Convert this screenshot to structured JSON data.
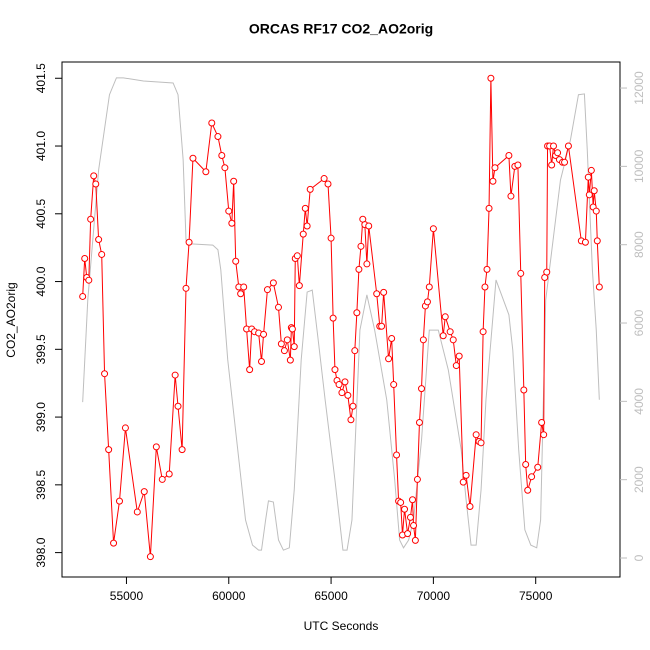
{
  "chart_data": {
    "type": "line",
    "title": "ORCAS RF17 CO2_AO2orig",
    "xlabel": "UTC Seconds",
    "ylabel": "CO2_AO2orig",
    "xlim": [
      51850,
      79120
    ],
    "xticks": [
      55000,
      60000,
      65000,
      70000,
      75000
    ],
    "ylim": [
      397.82,
      401.62
    ],
    "yticks": [
      {
        "value": 398.0,
        "label": "398.0"
      },
      398.5,
      {
        "value": 399.0,
        "label": "399.0"
      },
      399.5,
      {
        "value": 400.0,
        "label": "400.0"
      },
      400.5,
      {
        "value": 401.0,
        "label": "401.0"
      },
      401.5
    ],
    "y2lim": [
      -485,
      12665
    ],
    "y2ticks": [
      0,
      2000,
      4000,
      6000,
      8000,
      10000,
      12000
    ],
    "y2color": "#bebebe",
    "series": [
      {
        "color": "#bebebe",
        "axis": "y2",
        "markers": false,
        "x": [
          52860,
          53110,
          53640,
          54170,
          54510,
          54850,
          55830,
          57280,
          57520,
          57770,
          57910,
          58160,
          59220,
          59470,
          59610,
          59950,
          60440,
          60820,
          61160,
          61460,
          61600,
          61800,
          61940,
          62180,
          62430,
          62670,
          62960,
          63200,
          63540,
          63830,
          64080,
          64370,
          64710,
          65190,
          65580,
          65780,
          66020,
          66410,
          66750,
          67130,
          67720,
          68110,
          68350,
          68540,
          68790,
          69030,
          69420,
          69800,
          70240,
          70730,
          71360,
          71600,
          71840,
          72090,
          72330,
          72570,
          73060,
          73690,
          73880,
          74170,
          74470,
          74760,
          75050,
          75240,
          75490,
          76210,
          76700,
          77090,
          77380,
          77520,
          77770,
          77960,
          78110
        ],
        "values": [
          3980,
          6590,
          9910,
          11830,
          12260,
          12260,
          12180,
          12130,
          11830,
          10170,
          8120,
          8020,
          7990,
          7870,
          7360,
          5060,
          2760,
          970,
          330,
          200,
          200,
          970,
          1460,
          1430,
          460,
          200,
          260,
          1740,
          5060,
          6790,
          6840,
          5570,
          4040,
          1990,
          200,
          200,
          970,
          5820,
          6720,
          5820,
          4040,
          1990,
          460,
          260,
          460,
          970,
          3010,
          5820,
          5820,
          4800,
          2760,
          1480,
          330,
          330,
          1740,
          4040,
          7100,
          6210,
          5310,
          2760,
          720,
          330,
          260,
          970,
          6590,
          9650,
          10680,
          11830,
          11850,
          10420,
          7360,
          5820,
          4040
        ]
      },
      {
        "color": "#ff0000",
        "markers": true,
        "x": [
          52860,
          52960,
          53060,
          53160,
          53250,
          53400,
          53500,
          53640,
          53790,
          53930,
          54130,
          54370,
          54660,
          54950,
          55530,
          55870,
          56170,
          56460,
          56750,
          57090,
          57380,
          57520,
          57720,
          57910,
          58060,
          58250,
          58880,
          59170,
          59470,
          59660,
          59810,
          60000,
          60150,
          60240,
          60340,
          60490,
          60580,
          60730,
          60870,
          61020,
          61120,
          61260,
          61460,
          61600,
          61700,
          61890,
          62180,
          62430,
          62570,
          62720,
          62860,
          63010,
          63060,
          63110,
          63200,
          63250,
          63350,
          63450,
          63640,
          63740,
          63830,
          63980,
          64660,
          64850,
          65000,
          65100,
          65190,
          65290,
          65390,
          65530,
          65680,
          65820,
          65970,
          66070,
          66160,
          66260,
          66360,
          66460,
          66550,
          66650,
          66750,
          66840,
          67230,
          67380,
          67470,
          67570,
          67810,
          67960,
          68060,
          68200,
          68300,
          68400,
          68490,
          68590,
          68740,
          68880,
          68980,
          69030,
          69120,
          69220,
          69320,
          69420,
          69510,
          69610,
          69710,
          69800,
          70000,
          70480,
          70580,
          70820,
          70970,
          71120,
          71260,
          71460,
          71600,
          71790,
          72090,
          72230,
          72330,
          72430,
          72520,
          72620,
          72720,
          72810,
          72910,
          73010,
          73690,
          73790,
          73980,
          74130,
          74270,
          74420,
          74510,
          74610,
          74800,
          75100,
          75290,
          75390,
          75440,
          75540,
          75580,
          75680,
          75780,
          75870,
          75970,
          76070,
          76160,
          76310,
          76410,
          76600,
          77230,
          77430,
          77570,
          77620,
          77720,
          77810,
          77860,
          77960,
          78010,
          78110
        ],
        "values": [
          399.89,
          400.17,
          400.03,
          400.01,
          400.46,
          400.78,
          400.72,
          400.31,
          400.2,
          399.32,
          398.76,
          398.07,
          398.38,
          398.92,
          398.3,
          398.45,
          397.97,
          398.78,
          398.54,
          398.58,
          399.31,
          399.08,
          398.76,
          399.95,
          400.29,
          400.91,
          400.81,
          401.17,
          401.07,
          400.93,
          400.84,
          400.52,
          400.43,
          400.74,
          400.15,
          399.96,
          399.91,
          399.96,
          399.65,
          399.35,
          399.65,
          399.63,
          399.62,
          399.41,
          399.61,
          399.94,
          399.99,
          399.81,
          399.54,
          399.49,
          399.57,
          399.42,
          399.66,
          399.65,
          399.52,
          400.17,
          400.19,
          399.97,
          400.35,
          400.54,
          400.41,
          400.68,
          400.76,
          400.72,
          400.32,
          399.73,
          399.35,
          399.27,
          399.24,
          399.18,
          399.26,
          399.16,
          398.98,
          399.08,
          399.49,
          399.77,
          400.09,
          400.26,
          400.46,
          400.42,
          400.13,
          400.41,
          399.91,
          399.67,
          399.67,
          399.92,
          399.43,
          399.58,
          399.24,
          398.72,
          398.38,
          398.37,
          398.13,
          398.32,
          398.14,
          398.26,
          398.39,
          398.2,
          398.09,
          398.54,
          398.96,
          399.21,
          399.57,
          399.82,
          399.85,
          399.96,
          400.39,
          399.6,
          399.74,
          399.63,
          399.57,
          399.38,
          399.45,
          398.52,
          398.57,
          398.34,
          398.87,
          398.82,
          398.81,
          399.63,
          399.96,
          400.09,
          400.54,
          401.5,
          400.74,
          400.84,
          400.93,
          400.63,
          400.85,
          400.86,
          400.06,
          399.2,
          398.65,
          398.46,
          398.56,
          398.63,
          398.96,
          398.87,
          400.03,
          400.07,
          401.0,
          401.0,
          400.86,
          401.0,
          400.93,
          400.95,
          400.9,
          400.88,
          400.88,
          401.0,
          400.3,
          400.29,
          400.77,
          400.64,
          400.82,
          400.55,
          400.67,
          400.52,
          400.3,
          399.96
        ]
      }
    ]
  }
}
